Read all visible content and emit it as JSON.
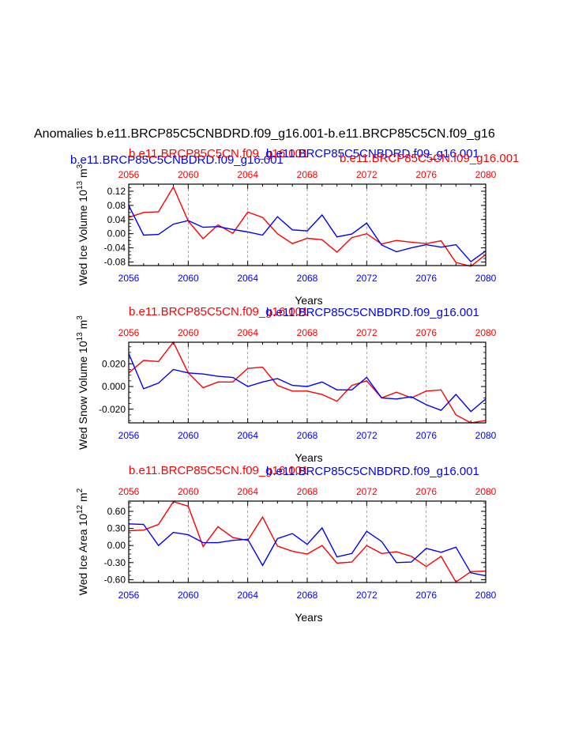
{
  "main_title": "Anomalies b.e11.BRCP85C5CNBDRD.f09_g16.001-b.e11.BRCP85C5CN.f09_g16",
  "colors": {
    "red_series": "#ff0000",
    "blue_series": "#0000ff",
    "axis": "#000000",
    "gridline": "#888888"
  },
  "chart_data": [
    {
      "type": "line",
      "name": "wed-ice-volume",
      "legend_labels": {
        "top_left_blue": "b.e11.BRCP85C5CNBDRD.f09_g16.001",
        "top_mid_red": "b.e11.BRCP85C5CN.f09_g16.001",
        "top_mid_blue": "b.e11.BRCP85C5CNBDRD.f09_g16.001",
        "top_right_red": "b.e11.BRCP85C5CN.f09_g16.001"
      },
      "ylabel_main": "Wed Ice Volume 10",
      "ylabel_exp": "13",
      "ylabel_unit": " m",
      "ylabel_unit_exp": "3",
      "xlabel": "Years",
      "xlim": [
        2056,
        2080
      ],
      "ylim": [
        -0.09,
        0.14
      ],
      "yticks": [
        0.12,
        0.08,
        0.04,
        0.0,
        -0.04,
        -0.08
      ],
      "ytick_labels": [
        "0.12",
        "0.08",
        "0.04",
        "0.00",
        "-0.04",
        "-0.08"
      ],
      "xticks": [
        2056,
        2060,
        2064,
        2068,
        2072,
        2076,
        2080
      ],
      "xtick_labels": [
        "2056",
        "2060",
        "2064",
        "2068",
        "2072",
        "2076",
        "2080"
      ],
      "dashed_x": [
        2060,
        2064,
        2068,
        2072,
        2076
      ],
      "x": [
        2056,
        2057,
        2058,
        2059,
        2060,
        2061,
        2062,
        2063,
        2064,
        2065,
        2066,
        2067,
        2068,
        2069,
        2070,
        2071,
        2072,
        2073,
        2074,
        2075,
        2076,
        2077,
        2078,
        2079,
        2080
      ],
      "series": [
        {
          "name": "b.e11.BRCP85C5CN.f09_g16.001",
          "color": "red",
          "values": [
            0.046,
            0.06,
            0.062,
            0.132,
            0.036,
            -0.014,
            0.025,
            0.001,
            0.061,
            0.046,
            0.0,
            -0.028,
            -0.013,
            -0.017,
            -0.052,
            -0.011,
            0.0,
            -0.029,
            -0.019,
            -0.024,
            -0.028,
            -0.02,
            -0.081,
            -0.092,
            -0.059
          ]
        },
        {
          "name": "b.e11.BRCP85C5CNBDRD.f09_g16.001",
          "color": "blue",
          "values": [
            0.08,
            -0.004,
            -0.002,
            0.027,
            0.037,
            0.018,
            0.02,
            0.012,
            0.005,
            -0.004,
            0.048,
            0.011,
            0.008,
            0.053,
            -0.009,
            -0.001,
            0.03,
            -0.032,
            -0.051,
            -0.04,
            -0.031,
            -0.038,
            -0.031,
            -0.079,
            -0.049
          ]
        }
      ]
    },
    {
      "type": "line",
      "name": "wed-snow-volume",
      "legend_labels": {
        "top_mid_red": "b.e11.BRCP85C5CN.f09_g16.001",
        "top_mid_blue": "b.e11.BRCP85C5CNBDRD.f09_g16.001"
      },
      "ylabel_main": "Wed Snow Volume 10",
      "ylabel_exp": "13",
      "ylabel_unit": " m",
      "ylabel_unit_exp": "3",
      "xlabel": "Years",
      "xlim": [
        2056,
        2080
      ],
      "ylim": [
        -0.032,
        0.039
      ],
      "yticks": [
        0.02,
        0.0,
        -0.02
      ],
      "ytick_labels": [
        "0.020",
        "0.000",
        "-0.020"
      ],
      "xticks": [
        2056,
        2060,
        2064,
        2068,
        2072,
        2076,
        2080
      ],
      "xtick_labels": [
        "2056",
        "2060",
        "2064",
        "2068",
        "2072",
        "2076",
        "2080"
      ],
      "dashed_x": [
        2060,
        2064,
        2068,
        2072,
        2076
      ],
      "x": [
        2056,
        2057,
        2058,
        2059,
        2060,
        2061,
        2062,
        2063,
        2064,
        2065,
        2066,
        2067,
        2068,
        2069,
        2070,
        2071,
        2072,
        2073,
        2074,
        2075,
        2076,
        2077,
        2078,
        2079,
        2080
      ],
      "series": [
        {
          "name": "b.e11.BRCP85C5CN.f09_g16.001",
          "color": "red",
          "values": [
            0.012,
            0.023,
            0.022,
            0.039,
            0.012,
            -0.001,
            0.004,
            0.004,
            0.016,
            0.017,
            0.001,
            -0.004,
            -0.004,
            -0.007,
            -0.013,
            0.001,
            0.005,
            -0.01,
            -0.005,
            -0.01,
            -0.004,
            -0.003,
            -0.025,
            -0.032,
            -0.03
          ]
        },
        {
          "name": "b.e11.BRCP85C5CNBDRD.f09_g16.001",
          "color": "blue",
          "values": [
            0.029,
            -0.002,
            0.003,
            0.015,
            0.012,
            0.011,
            0.009,
            0.008,
            0.0,
            0.004,
            0.007,
            0.001,
            0.0,
            0.004,
            -0.003,
            -0.003,
            0.008,
            -0.01,
            -0.011,
            -0.009,
            -0.016,
            -0.021,
            -0.007,
            -0.022,
            -0.011
          ]
        }
      ]
    },
    {
      "type": "line",
      "name": "wed-ice-area",
      "legend_labels": {
        "top_mid_red": "b.e11.BRCP85C5CN.f09_g16.001",
        "top_mid_blue": "b.e11.BRCP85C5CNBDRD.f09_g16.001"
      },
      "ylabel_main": "Wed Ice Area 10",
      "ylabel_exp": "12",
      "ylabel_unit": " m",
      "ylabel_unit_exp": "2",
      "xlabel": "Years",
      "xlim": [
        2056,
        2080
      ],
      "ylim": [
        -0.65,
        0.78
      ],
      "yticks": [
        0.6,
        0.3,
        0.0,
        -0.3,
        -0.6
      ],
      "ytick_labels": [
        "0.60",
        "0.30",
        "0.00",
        "-0.30",
        "-0.60"
      ],
      "xticks": [
        2056,
        2060,
        2064,
        2068,
        2072,
        2076,
        2080
      ],
      "xtick_labels": [
        "2056",
        "2060",
        "2064",
        "2068",
        "2072",
        "2076",
        "2080"
      ],
      "dashed_x": [
        2060,
        2064,
        2068,
        2072,
        2076
      ],
      "x": [
        2056,
        2057,
        2058,
        2059,
        2060,
        2061,
        2062,
        2063,
        2064,
        2065,
        2066,
        2067,
        2068,
        2069,
        2070,
        2071,
        2072,
        2073,
        2074,
        2075,
        2076,
        2077,
        2078,
        2079,
        2080
      ],
      "series": [
        {
          "name": "b.e11.BRCP85C5CN.f09_g16.001",
          "color": "red",
          "values": [
            0.26,
            0.27,
            0.37,
            0.77,
            0.69,
            -0.02,
            0.33,
            0.14,
            0.09,
            0.5,
            -0.01,
            -0.1,
            -0.15,
            0.0,
            -0.31,
            -0.29,
            0.0,
            -0.14,
            -0.11,
            -0.19,
            -0.37,
            -0.19,
            -0.64,
            -0.46,
            -0.45
          ]
        },
        {
          "name": "b.e11.BRCP85C5CNBDRD.f09_g16.001",
          "color": "blue",
          "values": [
            0.38,
            0.37,
            0.0,
            0.23,
            0.19,
            0.05,
            0.05,
            0.09,
            0.11,
            -0.35,
            0.12,
            0.21,
            0.02,
            0.31,
            -0.2,
            -0.14,
            0.25,
            0.07,
            -0.3,
            -0.29,
            -0.05,
            -0.12,
            -0.03,
            -0.48,
            -0.53
          ]
        }
      ]
    }
  ]
}
